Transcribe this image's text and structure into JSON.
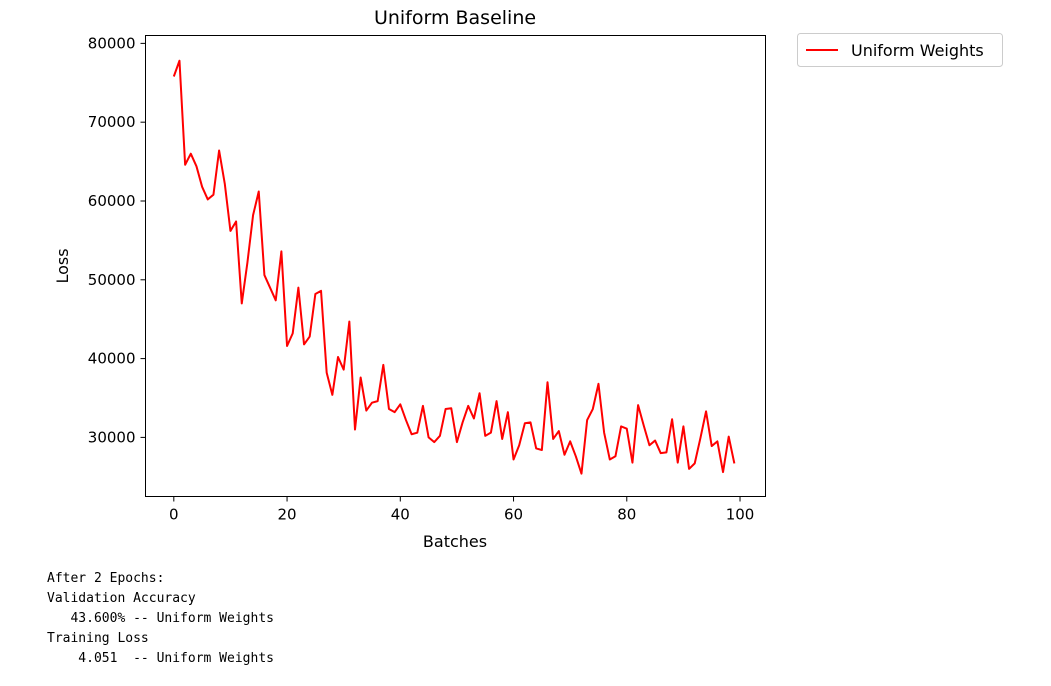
{
  "chart_data": {
    "type": "line",
    "title": "Uniform Baseline",
    "xlabel": "Batches",
    "ylabel": "Loss",
    "xlim": [
      -5,
      104.5
    ],
    "ylim": [
      22500,
      81000
    ],
    "xticks": [
      0,
      20,
      40,
      60,
      80,
      100
    ],
    "yticks": [
      30000,
      40000,
      50000,
      60000,
      70000,
      80000
    ],
    "grid": false,
    "legend_position": "outside top-right",
    "series": [
      {
        "name": "Uniform Weights",
        "color": "#ff0000",
        "x": [
          0,
          1,
          2,
          3,
          4,
          5,
          6,
          7,
          8,
          9,
          10,
          11,
          12,
          13,
          14,
          15,
          16,
          17,
          18,
          19,
          20,
          21,
          22,
          23,
          24,
          25,
          26,
          27,
          28,
          29,
          30,
          31,
          32,
          33,
          34,
          35,
          36,
          37,
          38,
          39,
          40,
          41,
          42,
          43,
          44,
          45,
          46,
          47,
          48,
          49,
          50,
          51,
          52,
          53,
          54,
          55,
          56,
          57,
          58,
          59,
          60,
          61,
          62,
          63,
          64,
          65,
          66,
          67,
          68,
          69,
          70,
          71,
          72,
          73,
          74,
          75,
          76,
          77,
          78,
          79,
          80,
          81,
          82,
          83,
          84,
          85,
          86,
          87,
          88,
          89,
          90,
          91,
          92,
          93,
          94,
          95,
          96,
          97,
          98,
          99
        ],
        "values": [
          75800,
          77800,
          64600,
          66000,
          64400,
          61800,
          60200,
          60800,
          66400,
          62200,
          56200,
          57400,
          47000,
          52200,
          58200,
          61200,
          50600,
          49000,
          47400,
          53600,
          41600,
          43200,
          49000,
          41800,
          42800,
          48200,
          48600,
          38200,
          35400,
          40200,
          38600,
          44700,
          31000,
          37600,
          33400,
          34400,
          34600,
          39200,
          33600,
          33200,
          34200,
          32200,
          30400,
          30600,
          34000,
          30000,
          29400,
          30200,
          33600,
          33700,
          29400,
          31900,
          34000,
          32400,
          35600,
          30200,
          30600,
          34600,
          29800,
          33200,
          27200,
          29000,
          31800,
          31900,
          28600,
          28400,
          37000,
          29800,
          30800,
          27800,
          29500,
          27600,
          25400,
          32200,
          33600,
          36800,
          30600,
          27200,
          27600,
          31400,
          31100,
          26800,
          34100,
          31500,
          29000,
          29600,
          28000,
          28100,
          32300,
          26800,
          31400,
          26000,
          26700,
          29900,
          33300,
          28900,
          29500,
          25600,
          30100,
          26700
        ]
      }
    ]
  },
  "notes": {
    "line1": "After 2 Epochs:",
    "line2": "Validation Accuracy",
    "line3": "   43.600% -- Uniform Weights",
    "line4": "Training Loss",
    "line5": "    4.051  -- Uniform Weights"
  }
}
